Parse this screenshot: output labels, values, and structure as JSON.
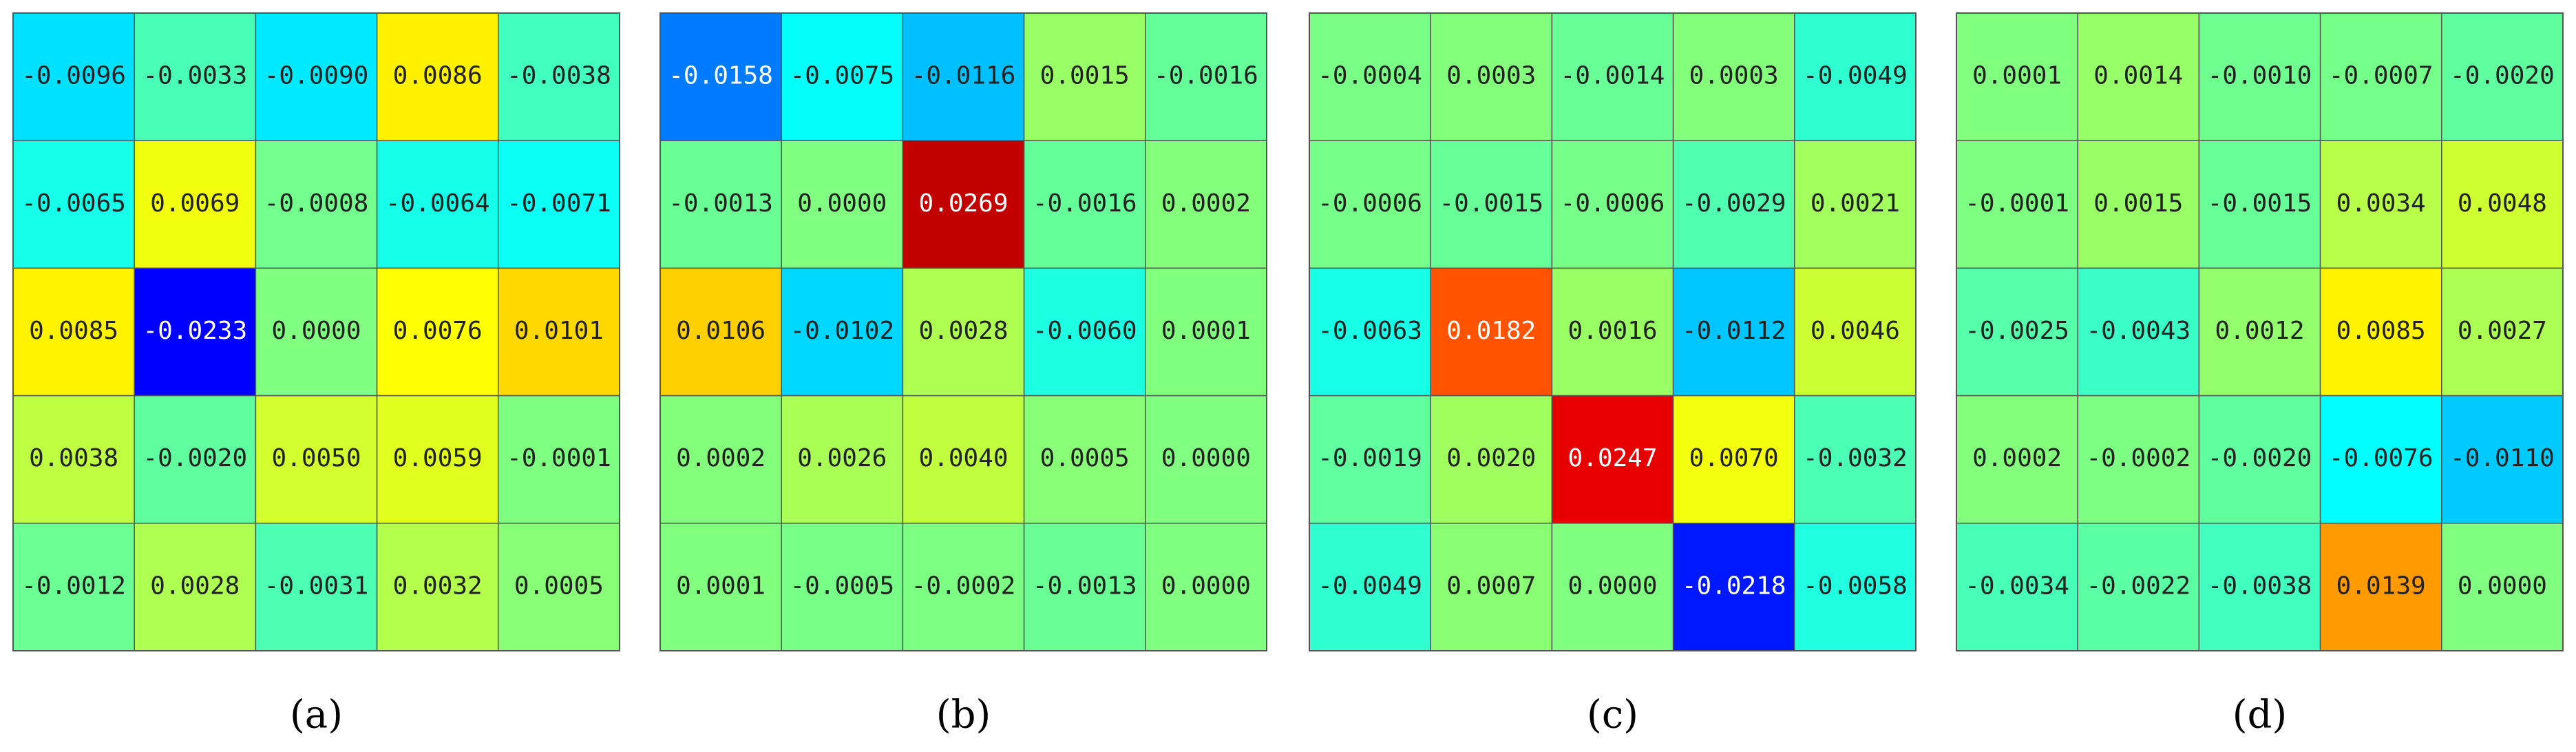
{
  "chart_data": [
    {
      "type": "heatmap",
      "label": "(a)",
      "colormap": "jet",
      "color_range": [
        -0.031,
        0.031
      ],
      "values": [
        [
          -0.0096,
          -0.0033,
          -0.009,
          0.0086,
          -0.0038
        ],
        [
          -0.0065,
          0.0069,
          -0.0008,
          -0.0064,
          -0.0071
        ],
        [
          0.0085,
          -0.0233,
          0.0,
          0.0076,
          0.0101
        ],
        [
          0.0038,
          -0.002,
          0.005,
          0.0059,
          -0.0001
        ],
        [
          -0.0012,
          0.0028,
          -0.0031,
          0.0032,
          0.0005
        ]
      ],
      "value_labels": [
        [
          "-0.0096",
          "-0.0033",
          "-0.0090",
          "0.0086",
          "-0.0038"
        ],
        [
          "-0.0065",
          "0.0069",
          "-0.0008",
          "-0.0064",
          "-0.0071"
        ],
        [
          "0.0085",
          "-0.0233",
          "0.0000",
          "0.0076",
          "0.0101"
        ],
        [
          "0.0038",
          "-0.0020",
          "0.0050",
          "0.0059",
          "-0.0001"
        ],
        [
          "-0.0012",
          "0.0028",
          "-0.0031",
          "0.0032",
          "0.0005"
        ]
      ]
    },
    {
      "type": "heatmap",
      "label": "(b)",
      "colormap": "jet",
      "color_range": [
        -0.031,
        0.031
      ],
      "values": [
        [
          -0.0158,
          -0.0075,
          -0.0116,
          0.0015,
          -0.0016
        ],
        [
          -0.0013,
          0.0,
          0.0269,
          -0.0016,
          0.0002
        ],
        [
          0.0106,
          -0.0102,
          0.0028,
          -0.006,
          0.0001
        ],
        [
          0.0002,
          0.0026,
          0.004,
          0.0005,
          0.0
        ],
        [
          0.0001,
          -0.0005,
          -0.0002,
          -0.0013,
          0.0
        ]
      ],
      "value_labels": [
        [
          "-0.0158",
          "-0.0075",
          "-0.0116",
          "0.0015",
          "-0.0016"
        ],
        [
          "-0.0013",
          "0.0000",
          "0.0269",
          "-0.0016",
          "0.0002"
        ],
        [
          "0.0106",
          "-0.0102",
          "0.0028",
          "-0.0060",
          "0.0001"
        ],
        [
          "0.0002",
          "0.0026",
          "0.0040",
          "0.0005",
          "0.0000"
        ],
        [
          "0.0001",
          "-0.0005",
          "-0.0002",
          "-0.0013",
          "0.0000"
        ]
      ]
    },
    {
      "type": "heatmap",
      "label": "(c)",
      "colormap": "jet",
      "color_range": [
        -0.031,
        0.031
      ],
      "values": [
        [
          -0.0004,
          0.0003,
          -0.0014,
          0.0003,
          -0.0049
        ],
        [
          -0.0006,
          -0.0015,
          -0.0006,
          -0.0029,
          0.0021
        ],
        [
          -0.0063,
          0.0182,
          0.0016,
          -0.0112,
          0.0046
        ],
        [
          -0.0019,
          0.002,
          0.0247,
          0.007,
          -0.0032
        ],
        [
          -0.0049,
          0.0007,
          0.0,
          -0.0218,
          -0.0058
        ]
      ],
      "value_labels": [
        [
          "-0.0004",
          "0.0003",
          "-0.0014",
          "0.0003",
          "-0.0049"
        ],
        [
          "-0.0006",
          "-0.0015",
          "-0.0006",
          "-0.0029",
          "0.0021"
        ],
        [
          "-0.0063",
          "0.0182",
          "0.0016",
          "-0.0112",
          "0.0046"
        ],
        [
          "-0.0019",
          "0.0020",
          "0.0247",
          "0.0070",
          "-0.0032"
        ],
        [
          "-0.0049",
          "0.0007",
          "0.0000",
          "-0.0218",
          "-0.0058"
        ]
      ]
    },
    {
      "type": "heatmap",
      "label": "(d)",
      "colormap": "jet",
      "color_range": [
        -0.031,
        0.031
      ],
      "values": [
        [
          0.0001,
          0.0014,
          -0.001,
          -0.0007,
          -0.002
        ],
        [
          -0.0001,
          0.0015,
          -0.0015,
          0.0034,
          0.0048
        ],
        [
          -0.0025,
          -0.0043,
          0.0012,
          0.0085,
          0.0027
        ],
        [
          0.0002,
          -0.0002,
          -0.002,
          -0.0076,
          -0.011
        ],
        [
          -0.0034,
          -0.0022,
          -0.0038,
          0.0139,
          0.0
        ]
      ],
      "value_labels": [
        [
          "0.0001",
          "0.0014",
          "-0.0010",
          "-0.0007",
          "-0.0020"
        ],
        [
          "-0.0001",
          "0.0015",
          "-0.0015",
          "0.0034",
          "0.0048"
        ],
        [
          "-0.0025",
          "-0.0043",
          "0.0012",
          "0.0085",
          "0.0027"
        ],
        [
          "0.0002",
          "-0.0002",
          "-0.0020",
          "-0.0076",
          "-0.0110"
        ],
        [
          "-0.0034",
          "-0.0022",
          "-0.0038",
          "0.0139",
          "0.0000"
        ]
      ]
    }
  ]
}
